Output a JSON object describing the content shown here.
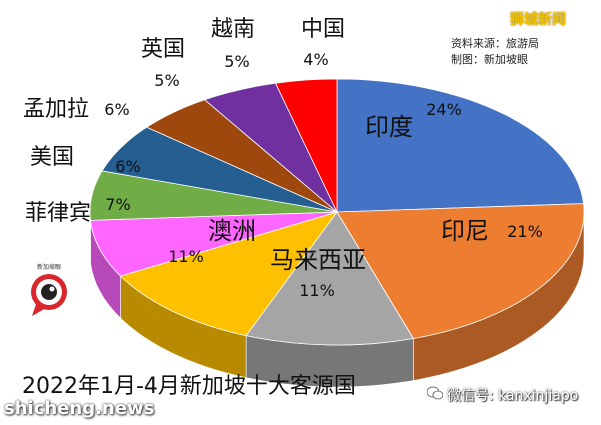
{
  "chart_data": {
    "type": "pie",
    "title": "2022年1月-4月新加坡十大客源国",
    "slices": [
      {
        "label": "印度",
        "value": 24,
        "pct": "24%",
        "color": "#4472c4"
      },
      {
        "label": "印尼",
        "value": 21,
        "pct": "21%",
        "color": "#ed7d31"
      },
      {
        "label": "马来西亚",
        "value": 11,
        "pct": "11%",
        "color": "#a5a5a5"
      },
      {
        "label": "澳洲",
        "value": 11,
        "pct": "11%",
        "color": "#ffc000"
      },
      {
        "label": "菲律宾",
        "value": 7,
        "pct": "7%",
        "color": "#ff66ff"
      },
      {
        "label": "美国",
        "value": 6,
        "pct": "6%",
        "color": "#70ad47"
      },
      {
        "label": "孟加拉",
        "value": 6,
        "pct": "6%",
        "color": "#255e91"
      },
      {
        "label": "英国",
        "value": 5,
        "pct": "5%",
        "color": "#9e480e"
      },
      {
        "label": "越南",
        "value": 5,
        "pct": "5%",
        "color": "#7030a0"
      },
      {
        "label": "中国",
        "value": 4,
        "pct": "4%",
        "color": "#ff0000"
      }
    ]
  },
  "source": {
    "line1": "资料来源：旅游局",
    "line2": "制图：新加坡眼"
  },
  "watermarks": {
    "top": "狮城新闻",
    "left": "shicheng.news",
    "right": "微信号: kanxinjiapo"
  },
  "logo_text": "新加坡眼"
}
